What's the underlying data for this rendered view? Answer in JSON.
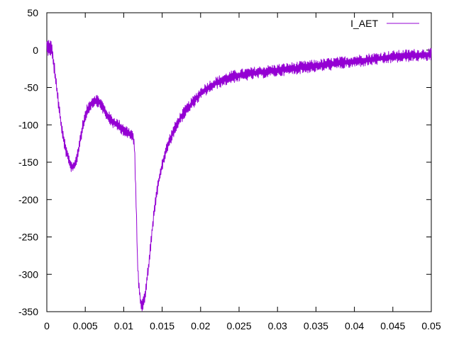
{
  "chart_data": {
    "type": "line",
    "title": "",
    "xlabel": "",
    "ylabel": "",
    "xlim": [
      0,
      0.05
    ],
    "ylim": [
      -350,
      50
    ],
    "xticks": [
      0,
      0.005,
      0.01,
      0.015,
      0.02,
      0.025,
      0.03,
      0.035,
      0.04,
      0.045,
      0.05
    ],
    "xtick_labels": [
      "0",
      "0.005",
      "0.01",
      "0.015",
      "0.02",
      "0.025",
      "0.03",
      "0.035",
      "0.04",
      "0.045",
      "0.05"
    ],
    "yticks": [
      50,
      0,
      -50,
      -100,
      -150,
      -200,
      -250,
      -300,
      -350
    ],
    "ytick_labels": [
      "50",
      "0",
      "-50",
      "-100",
      "-150",
      "-200",
      "-250",
      "-300",
      "-350"
    ],
    "grid": false,
    "legend_position": "top-right",
    "series": [
      {
        "name": "I_AET",
        "color": "#9400d3",
        "x": [
          0,
          0.0003,
          0.0006,
          0.001,
          0.0015,
          0.002,
          0.0025,
          0.003,
          0.0034,
          0.0038,
          0.0042,
          0.0047,
          0.0052,
          0.0057,
          0.0062,
          0.0067,
          0.0072,
          0.0077,
          0.0082,
          0.0087,
          0.0092,
          0.0097,
          0.0102,
          0.0107,
          0.0112,
          0.0114,
          0.0116,
          0.0118,
          0.012,
          0.0122,
          0.0124,
          0.0126,
          0.0128,
          0.013,
          0.0133,
          0.0136,
          0.014,
          0.0145,
          0.015,
          0.0155,
          0.016,
          0.0165,
          0.017,
          0.0175,
          0.018,
          0.019,
          0.02,
          0.021,
          0.022,
          0.023,
          0.024,
          0.025,
          0.0275,
          0.03,
          0.0325,
          0.035,
          0.0375,
          0.04,
          0.0425,
          0.045,
          0.0475,
          0.05
        ],
        "y": [
          3,
          5,
          2,
          -25,
          -70,
          -110,
          -135,
          -152,
          -158,
          -150,
          -128,
          -100,
          -82,
          -72,
          -67,
          -68,
          -75,
          -85,
          -92,
          -97,
          -100,
          -104,
          -108,
          -112,
          -115,
          -130,
          -200,
          -285,
          -320,
          -337,
          -341,
          -336,
          -326,
          -310,
          -282,
          -250,
          -212,
          -178,
          -153,
          -135,
          -120,
          -108,
          -98,
          -89,
          -82,
          -70,
          -58,
          -50,
          -44,
          -40,
          -36,
          -34,
          -30,
          -27,
          -24,
          -21,
          -18,
          -15,
          -12,
          -9,
          -7,
          -6
        ]
      }
    ]
  }
}
